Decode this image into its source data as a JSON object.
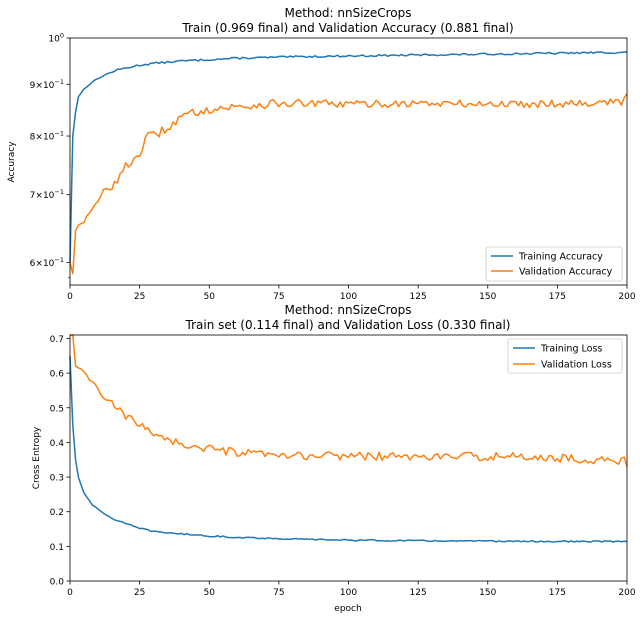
{
  "chart_data": [
    {
      "type": "line",
      "title_line1": "Method: nnSizeCrops",
      "title_line2": "Train (0.969 final) and Validation Accuracy (0.881 final)",
      "xlabel": "",
      "ylabel": "Accuracy",
      "yscale": "log",
      "xlim": [
        0,
        200
      ],
      "ylim": [
        0.57,
        1.0
      ],
      "xticks": [
        "0",
        "25",
        "50",
        "75",
        "100",
        "125",
        "150",
        "175",
        "200"
      ],
      "yticks": [
        {
          "value": 0.6,
          "mantissa": "6",
          "exp": "−1"
        },
        {
          "value": 0.7,
          "mantissa": "7",
          "exp": "−1"
        },
        {
          "value": 0.8,
          "mantissa": "8",
          "exp": "−1"
        },
        {
          "value": 0.9,
          "mantissa": "9",
          "exp": "−1"
        },
        {
          "value": 1.0,
          "mantissa": "",
          "exp": "0"
        }
      ],
      "legend_position": "lower-right",
      "series": [
        {
          "name": "Training Accuracy",
          "color": "#1f77b4",
          "knots": [
            [
              0,
              0.6
            ],
            [
              1,
              0.8
            ],
            [
              2,
              0.845
            ],
            [
              3,
              0.875
            ],
            [
              5,
              0.89
            ],
            [
              8,
              0.905
            ],
            [
              12,
              0.918
            ],
            [
              16,
              0.928
            ],
            [
              20,
              0.934
            ],
            [
              25,
              0.94
            ],
            [
              30,
              0.944
            ],
            [
              40,
              0.949
            ],
            [
              50,
              0.952
            ],
            [
              60,
              0.955
            ],
            [
              80,
              0.958
            ],
            [
              100,
              0.96
            ],
            [
              125,
              0.962
            ],
            [
              150,
              0.964
            ],
            [
              175,
              0.966
            ],
            [
              200,
              0.968
            ]
          ],
          "jitter": 0.002,
          "final": 0.969
        },
        {
          "name": "Validation Accuracy",
          "color": "#ff7f0e",
          "knots": [
            [
              0,
              0.6
            ],
            [
              1,
              0.585
            ],
            [
              2,
              0.645
            ],
            [
              3,
              0.655
            ],
            [
              5,
              0.66
            ],
            [
              8,
              0.675
            ],
            [
              10,
              0.69
            ],
            [
              12,
              0.705
            ],
            [
              15,
              0.715
            ],
            [
              18,
              0.73
            ],
            [
              20,
              0.745
            ],
            [
              25,
              0.77
            ],
            [
              28,
              0.8
            ],
            [
              30,
              0.8
            ],
            [
              35,
              0.815
            ],
            [
              40,
              0.835
            ],
            [
              45,
              0.845
            ],
            [
              50,
              0.85
            ],
            [
              60,
              0.855
            ],
            [
              75,
              0.862
            ],
            [
              100,
              0.86
            ],
            [
              125,
              0.862
            ],
            [
              150,
              0.86
            ],
            [
              175,
              0.862
            ],
            [
              200,
              0.865
            ]
          ],
          "jitter": 0.008,
          "final": 0.881
        }
      ]
    },
    {
      "type": "line",
      "title_line1": "Method: nnSizeCrops",
      "title_line2": "Train set (0.114 final) and Validation Loss (0.330 final)",
      "xlabel": "epoch",
      "ylabel": "Cross Entropy",
      "yscale": "linear",
      "xlim": [
        0,
        200
      ],
      "ylim": [
        0.0,
        0.71
      ],
      "xticks": [
        "0",
        "25",
        "50",
        "75",
        "100",
        "125",
        "150",
        "175",
        "200"
      ],
      "yticks": [
        {
          "value": 0.0,
          "label": "0.0"
        },
        {
          "value": 0.1,
          "label": "0.1"
        },
        {
          "value": 0.2,
          "label": "0.2"
        },
        {
          "value": 0.3,
          "label": "0.3"
        },
        {
          "value": 0.4,
          "label": "0.4"
        },
        {
          "value": 0.5,
          "label": "0.5"
        },
        {
          "value": 0.6,
          "label": "0.6"
        },
        {
          "value": 0.7,
          "label": "0.7"
        }
      ],
      "legend_position": "upper-right",
      "series": [
        {
          "name": "Training Loss",
          "color": "#1f77b4",
          "knots": [
            [
              0,
              0.65
            ],
            [
              1,
              0.45
            ],
            [
              2,
              0.35
            ],
            [
              3,
              0.3
            ],
            [
              5,
              0.255
            ],
            [
              8,
              0.22
            ],
            [
              12,
              0.195
            ],
            [
              16,
              0.178
            ],
            [
              20,
              0.165
            ],
            [
              25,
              0.152
            ],
            [
              30,
              0.143
            ],
            [
              40,
              0.136
            ],
            [
              50,
              0.13
            ],
            [
              60,
              0.126
            ],
            [
              80,
              0.121
            ],
            [
              100,
              0.118
            ],
            [
              125,
              0.116
            ],
            [
              150,
              0.115
            ],
            [
              175,
              0.114
            ],
            [
              200,
              0.114
            ]
          ],
          "jitter": 0.002,
          "final": 0.114
        },
        {
          "name": "Validation Loss",
          "color": "#ff7f0e",
          "knots": [
            [
              0,
              0.71
            ],
            [
              1,
              0.71
            ],
            [
              2,
              0.62
            ],
            [
              5,
              0.6
            ],
            [
              8,
              0.575
            ],
            [
              10,
              0.555
            ],
            [
              12,
              0.53
            ],
            [
              15,
              0.51
            ],
            [
              18,
              0.49
            ],
            [
              20,
              0.475
            ],
            [
              25,
              0.45
            ],
            [
              30,
              0.43
            ],
            [
              35,
              0.41
            ],
            [
              40,
              0.395
            ],
            [
              45,
              0.385
            ],
            [
              50,
              0.38
            ],
            [
              60,
              0.37
            ],
            [
              75,
              0.36
            ],
            [
              100,
              0.362
            ],
            [
              125,
              0.358
            ],
            [
              150,
              0.36
            ],
            [
              175,
              0.355
            ],
            [
              200,
              0.345
            ]
          ],
          "jitter": 0.012,
          "final": 0.33
        }
      ]
    }
  ]
}
